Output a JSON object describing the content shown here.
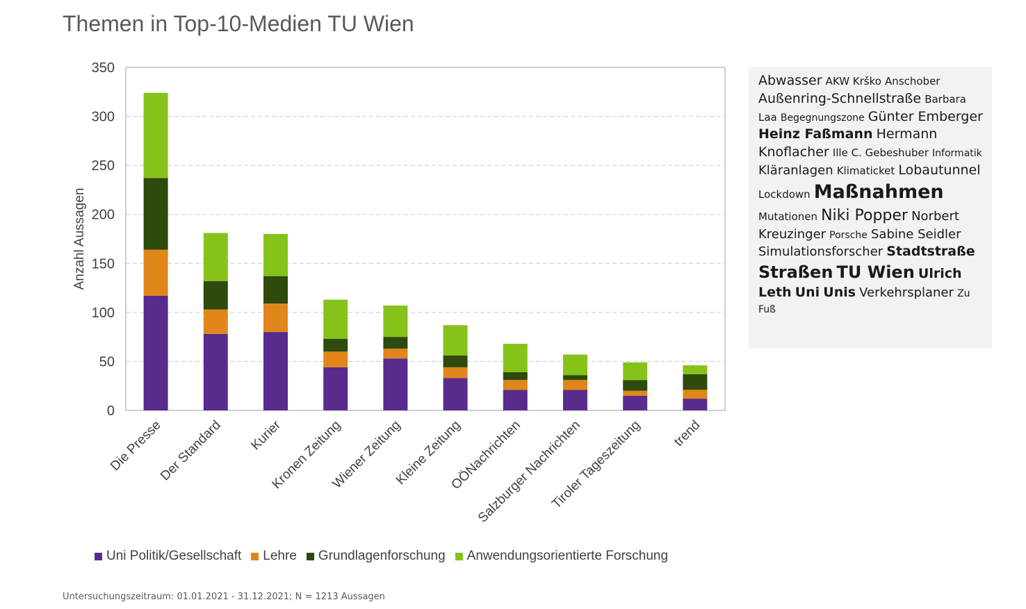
{
  "title": "Themen in Top-10-Medien TU Wien",
  "footnote": "Untersuchungszeitraum: 01.01.2021 - 31.12.2021; N = 1213 Aussagen",
  "colors": {
    "Uni Politik/Gesellschaft": "#582c8c",
    "Lehre": "#e0861a",
    "Grundlagenforschung": "#2e4a0d",
    "Anwendungsorientierte Forschung": "#86c31a",
    "grid": "#c8c8c8",
    "plot_border": "#bfbfbf",
    "cloud_bg": "#f2f2f2"
  },
  "chart_data": {
    "type": "bar",
    "stacked": true,
    "ylabel": "Anzahl Aussagen",
    "xlabel": "",
    "ylim": [
      0,
      350
    ],
    "yticks": [
      0,
      50,
      100,
      150,
      200,
      250,
      300,
      350
    ],
    "grid": true,
    "legend_position": "bottom",
    "categories": [
      "Die Presse",
      "Der Standard",
      "Kurier",
      "Kronen Zeitung",
      "Wiener Zeitung",
      "Kleine Zeitung",
      "OÖNachrichten",
      "Salzburger Nachrichten",
      "Tiroler Tageszeitung",
      "trend"
    ],
    "series": [
      {
        "name": "Uni Politik/Gesellschaft",
        "values": [
          117,
          78,
          80,
          44,
          53,
          33,
          21,
          21,
          15,
          12
        ]
      },
      {
        "name": "Lehre",
        "values": [
          47,
          25,
          29,
          16,
          10,
          11,
          10,
          10,
          5,
          9
        ]
      },
      {
        "name": "Grundlagenforschung",
        "values": [
          73,
          29,
          28,
          13,
          12,
          12,
          8,
          5,
          11,
          16
        ]
      },
      {
        "name": "Anwendungsorientierte Forschung",
        "values": [
          87,
          49,
          43,
          40,
          32,
          31,
          29,
          21,
          18,
          9
        ]
      }
    ]
  },
  "word_cloud": [
    {
      "text": "Abwasser",
      "size": 19,
      "bold": false
    },
    {
      "text": "AKW Krško",
      "size": 15,
      "bold": false
    },
    {
      "text": "Anschober",
      "size": 15,
      "bold": false
    },
    {
      "text": "Außenring-Schnellstraße",
      "size": 19,
      "bold": false
    },
    {
      "text": "Barbara Laa",
      "size": 15,
      "bold": false
    },
    {
      "text": "Begegnungszone",
      "size": 14,
      "bold": false
    },
    {
      "text": "Günter Emberger",
      "size": 19,
      "bold": false
    },
    {
      "text": "Heinz Faßmann",
      "size": 19,
      "bold": true
    },
    {
      "text": "Hermann Knoflacher",
      "size": 19,
      "bold": false
    },
    {
      "text": "Ille C. Gebeshuber",
      "size": 15,
      "bold": false
    },
    {
      "text": "Informatik",
      "size": 14,
      "bold": false
    },
    {
      "text": "Kläranlagen",
      "size": 18,
      "bold": false
    },
    {
      "text": "Klimaticket",
      "size": 15,
      "bold": false
    },
    {
      "text": "Lobautunnel",
      "size": 19,
      "bold": false
    },
    {
      "text": "Lockdown",
      "size": 15,
      "bold": false
    },
    {
      "text": "Maßnahmen",
      "size": 27,
      "bold": true
    },
    {
      "text": "Mutationen",
      "size": 15,
      "bold": false
    },
    {
      "text": "Niki Popper",
      "size": 22,
      "bold": false
    },
    {
      "text": "Norbert Kreuzinger",
      "size": 18,
      "bold": false
    },
    {
      "text": "Porsche",
      "size": 14,
      "bold": false
    },
    {
      "text": "Sabine Seidler",
      "size": 18,
      "bold": false
    },
    {
      "text": "Simulationsforscher",
      "size": 18,
      "bold": false
    },
    {
      "text": "Stadtstraße",
      "size": 19,
      "bold": true
    },
    {
      "text": "Straßen",
      "size": 24,
      "bold": true
    },
    {
      "text": "TU Wien",
      "size": 24,
      "bold": true
    },
    {
      "text": "Ulrich Leth",
      "size": 19,
      "bold": true
    },
    {
      "text": "Uni",
      "size": 19,
      "bold": true
    },
    {
      "text": "Unis",
      "size": 19,
      "bold": true
    },
    {
      "text": "Verkehrsplaner",
      "size": 18,
      "bold": false
    },
    {
      "text": "Zu Fuß",
      "size": 14,
      "bold": false
    }
  ]
}
